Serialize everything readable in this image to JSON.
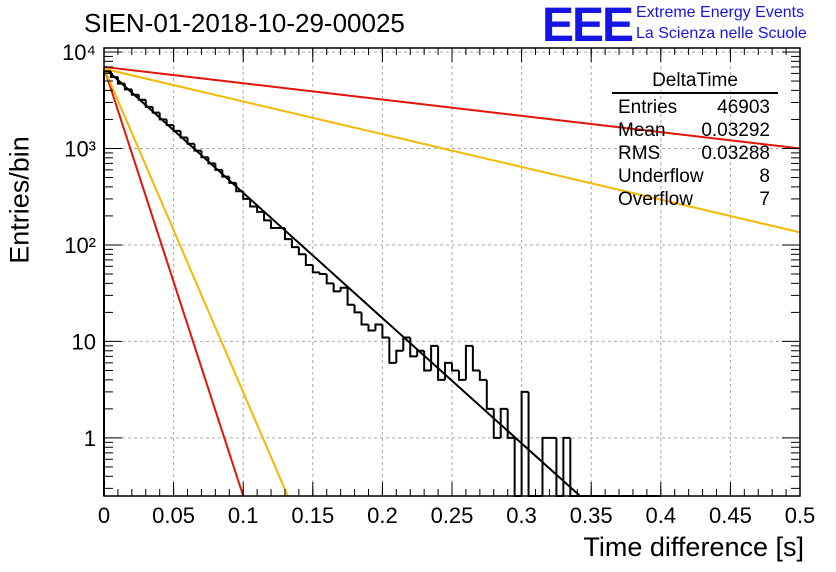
{
  "header": {
    "title": "SIEN-01-2018-10-29-00025",
    "logo_mark": "EEE",
    "logo_line1": "Extreme Energy Events",
    "logo_line2": "La Scienza nelle Scuole"
  },
  "stats_box": {
    "title": "DeltaTime",
    "rows": [
      {
        "key": "Entries",
        "value": "46903"
      },
      {
        "key": "Mean",
        "value": "0.03292"
      },
      {
        "key": "RMS",
        "value": "0.03288"
      },
      {
        "key": "Underflow",
        "value": "8"
      },
      {
        "key": "Overflow",
        "value": "7"
      }
    ]
  },
  "colors": {
    "histogram": "#000000",
    "fit": "#000000",
    "red_curves": "#e3120b",
    "yellow_curves": "#f5b800",
    "grid": "#aaaaaa"
  },
  "chart_data": {
    "type": "histogram",
    "title": "SIEN-01-2018-10-29-00025",
    "xlabel": "Time difference [s]",
    "ylabel": "Entries/bin",
    "xlim": [
      0,
      0.5
    ],
    "ylim": [
      0.25,
      11000
    ],
    "y_scale": "log",
    "grid": true,
    "x_ticks": [
      0,
      0.05,
      0.1,
      0.15,
      0.2,
      0.25,
      0.3,
      0.35,
      0.4,
      0.45,
      0.5
    ],
    "x_tick_labels": [
      "0",
      "0.05",
      "0.1",
      "0.15",
      "0.2",
      "0.25",
      "0.3",
      "0.35",
      "0.4",
      "0.45",
      "0.5"
    ],
    "y_ticks": [
      1,
      10,
      100,
      1000,
      10000
    ],
    "y_tick_labels": [
      "1",
      "10",
      "10²",
      "10³",
      "10⁴"
    ],
    "histogram": {
      "bin_width": 0.005,
      "bin_edges_start": 0,
      "values": [
        6300,
        5500,
        4700,
        4100,
        3600,
        3200,
        2700,
        2350,
        2000,
        1750,
        1520,
        1300,
        1120,
        950,
        810,
        700,
        600,
        510,
        440,
        360,
        300,
        250,
        220,
        180,
        150,
        150,
        115,
        95,
        80,
        62,
        52,
        50,
        40,
        33,
        36,
        24,
        20,
        15,
        13,
        15,
        11,
        6,
        8,
        11,
        7,
        8,
        5,
        9,
        4,
        6,
        5,
        4,
        9,
        5,
        4,
        2,
        1,
        2,
        1,
        0,
        3,
        0,
        0,
        1,
        1,
        0,
        1,
        0,
        0,
        0,
        0,
        0,
        0,
        0,
        0,
        0,
        0,
        0,
        0,
        0
      ]
    },
    "series": [
      {
        "name": "fit",
        "color": "#000000",
        "x": [
          0,
          0.342
        ],
        "y": [
          6900,
          0.25
        ]
      },
      {
        "name": "red slow",
        "color": "#e3120b",
        "x": [
          0,
          0.5
        ],
        "y": [
          7000,
          1000
        ]
      },
      {
        "name": "red fast",
        "color": "#e3120b",
        "x": [
          0,
          0.1
        ],
        "y": [
          6900,
          0.25
        ]
      },
      {
        "name": "yellow slow",
        "color": "#f5b800",
        "x": [
          0,
          0.5
        ],
        "y": [
          6700,
          135
        ]
      },
      {
        "name": "yellow fast",
        "color": "#f5b800",
        "x": [
          0,
          0.132
        ],
        "y": [
          6800,
          0.25
        ]
      }
    ]
  }
}
